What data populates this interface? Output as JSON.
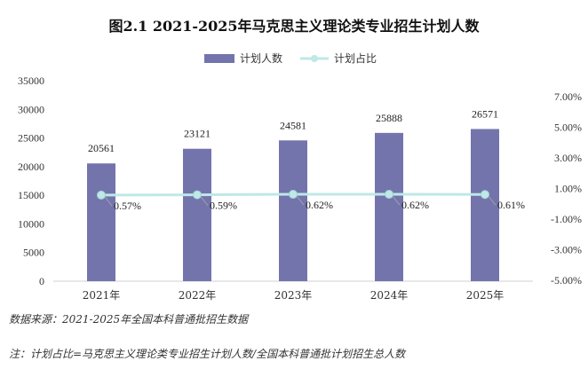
{
  "chart_data": {
    "type": "bar+line",
    "title": "图2.1  2021-2025年马克思主义理论类专业招生计划人数",
    "categories": [
      "2021年",
      "2022年",
      "2023年",
      "2024年",
      "2025年"
    ],
    "series": [
      {
        "name": "计划人数",
        "type": "bar",
        "axis": "left",
        "color": "#7474ad",
        "values": [
          20561,
          23121,
          24581,
          25888,
          26571
        ],
        "labels": [
          "20561",
          "23121",
          "24581",
          "25888",
          "26571"
        ]
      },
      {
        "name": "计划占比",
        "type": "line",
        "axis": "right",
        "color": "#bfe8e6",
        "values": [
          0.57,
          0.59,
          0.62,
          0.62,
          0.61
        ],
        "labels": [
          "0.57%",
          "0.59%",
          "0.62%",
          "0.62%",
          "0.61%"
        ]
      }
    ],
    "y_left": {
      "min": 0,
      "max": 35000,
      "ticks": [
        0,
        5000,
        10000,
        15000,
        20000,
        25000,
        30000,
        35000
      ],
      "tick_labels": [
        "0",
        "5000",
        "10000",
        "15000",
        "20000",
        "25000",
        "30000",
        "35000"
      ]
    },
    "y_right": {
      "min": -5,
      "max": 7,
      "ticks": [
        -5,
        -3,
        -1,
        1,
        3,
        5,
        7
      ],
      "tick_labels": [
        "-5.00%",
        "-3.00%",
        "-1.00%",
        "1.00%",
        "3.00%",
        "5.00%",
        "7.00%"
      ]
    },
    "legend_position": "top-center",
    "grid": false
  },
  "notes": {
    "source": "数据来源：2021-2025年全国本科普通批招生数据",
    "definition": "注：计划占比=马克思主义理论类专业招生计划人数/全国本科普通批计划招生总人数"
  }
}
